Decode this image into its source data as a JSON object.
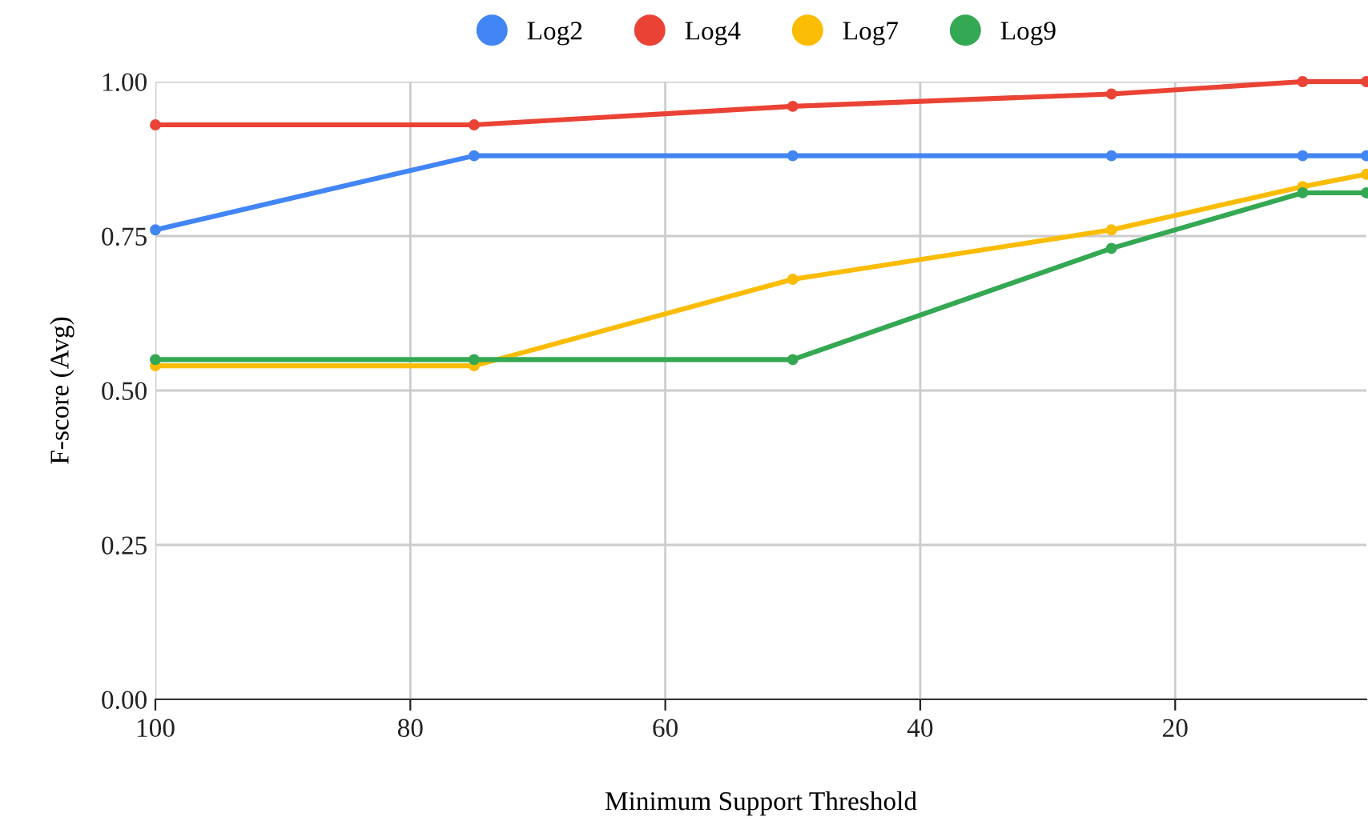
{
  "chart_data": {
    "type": "line",
    "xlabel": "Minimum Support Threshold",
    "ylabel": "F-score (Avg)",
    "x": [
      100,
      75,
      50,
      25,
      10,
      5
    ],
    "series": [
      {
        "name": "Log2",
        "color": "#4285f4",
        "values": [
          0.76,
          0.88,
          0.88,
          0.88,
          0.88,
          0.88
        ]
      },
      {
        "name": "Log4",
        "color": "#ea4335",
        "values": [
          0.93,
          0.93,
          0.96,
          0.98,
          1.0,
          1.0
        ]
      },
      {
        "name": "Log7",
        "color": "#fbbc04",
        "values": [
          0.54,
          0.54,
          0.68,
          0.76,
          0.83,
          0.85
        ]
      },
      {
        "name": "Log9",
        "color": "#34a853",
        "values": [
          0.55,
          0.55,
          0.55,
          0.73,
          0.82,
          0.82
        ]
      }
    ],
    "xlim": [
      100,
      5
    ],
    "xticks": [
      100,
      80,
      60,
      40,
      20
    ],
    "ylim": [
      0,
      1
    ],
    "yticks": [
      {
        "value": 0,
        "label": "0.00"
      },
      {
        "value": 0.25,
        "label": "0.25"
      },
      {
        "value": 0.5,
        "label": "0.50"
      },
      {
        "value": 0.75,
        "label": "0.75"
      },
      {
        "value": 1,
        "label": "1.00"
      }
    ],
    "grid": true,
    "legend": "top",
    "marker": "circle",
    "line_style": "solid"
  }
}
